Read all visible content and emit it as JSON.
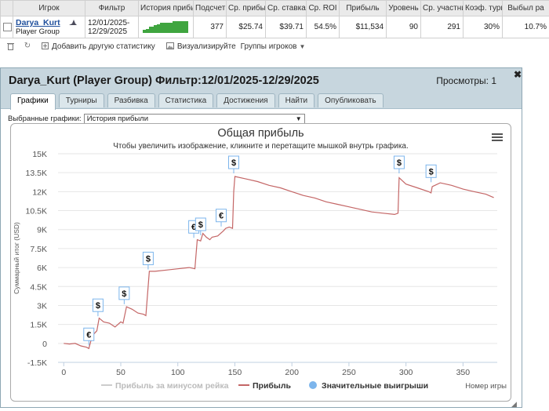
{
  "table": {
    "headers": [
      "Игрок",
      "Фильтр",
      "История прибыли",
      "Подсчет",
      "Ср. прибыль",
      "Ср. ставка",
      "Ср. ROI",
      "Прибыль",
      "Уровень",
      "Ср. участники",
      "Коэф. турниров",
      "Выбыл ра"
    ],
    "row": {
      "player_name": "Darya_Kurt",
      "player_group": "Player Group",
      "filter_line1": "12/01/2025-",
      "filter_line2": "12/29/2025",
      "count": "377",
      "avg_profit": "$25.74",
      "avg_stake": "$39.71",
      "avg_roi": "54.5%",
      "profit": "$11,534",
      "level": "90",
      "avg_participants": "291",
      "tourney_coef": "30%",
      "eliminated": "10.7%"
    }
  },
  "toolbar": {
    "add_stats": "Добавить другую статистику",
    "visualize": "Визуализируйте",
    "player_groups": "Группы игроков"
  },
  "panel": {
    "title": "Darya_Kurt (Player Group) Фильтр:12/01/2025-12/29/2025",
    "views": "Просмотры: 1",
    "tabs": [
      "Графики",
      "Турниры",
      "Разбивка",
      "Статистика",
      "Достижения",
      "Найти",
      "Опубликовать"
    ],
    "active_tab": 0,
    "selector_label": "Выбранные графики:",
    "selector_value": "История прибыли"
  },
  "chart_data": {
    "type": "line",
    "title": "Общая прибыль",
    "subtitle": "Чтобы увеличить изображение, кликните и перетащите мышкой внутрь графика.",
    "xlabel": "Номер игры",
    "ylabel": "Суммарный итог (USD)",
    "xlim": [
      -5,
      380
    ],
    "ylim": [
      -1500,
      15000
    ],
    "x_ticks": [
      0,
      50,
      100,
      150,
      200,
      250,
      300,
      350
    ],
    "y_tick_labels": [
      "-1.5K",
      "0",
      "1.5K",
      "3K",
      "4.5K",
      "6K",
      "7.5K",
      "9K",
      "10.5K",
      "12K",
      "13.5K",
      "15K"
    ],
    "y_tick_values": [
      -1500,
      0,
      1500,
      3000,
      4500,
      6000,
      7500,
      9000,
      10500,
      12000,
      13500,
      15000
    ],
    "grid": "horizontal",
    "legend_position": "bottom",
    "series": [
      {
        "name": "Прибыль за минусом рейка",
        "color": "#cccccc",
        "x": [],
        "y": []
      },
      {
        "name": "Прибыль",
        "color": "#c46666",
        "x": [
          0,
          5,
          10,
          15,
          20,
          22,
          25,
          29,
          31,
          35,
          40,
          45,
          50,
          52,
          55,
          60,
          65,
          70,
          72,
          75,
          80,
          90,
          100,
          110,
          115,
          117,
          120,
          122,
          125,
          128,
          130,
          135,
          140,
          142,
          145,
          148,
          149,
          150,
          160,
          170,
          180,
          190,
          200,
          210,
          220,
          230,
          240,
          250,
          260,
          270,
          280,
          290,
          293,
          294,
          300,
          310,
          320,
          322,
          323,
          330,
          340,
          350,
          360,
          370,
          377
        ],
        "y": [
          0,
          -50,
          0,
          -200,
          -300,
          -400,
          600,
          1000,
          2000,
          1700,
          1600,
          1300,
          1700,
          1600,
          2900,
          2700,
          2400,
          2300,
          2200,
          5700,
          5700,
          5800,
          5900,
          6000,
          5900,
          8200,
          8100,
          8700,
          8400,
          8200,
          8400,
          8500,
          8900,
          9100,
          9200,
          9100,
          12000,
          13200,
          13000,
          12800,
          12500,
          12300,
          12000,
          11700,
          11500,
          11200,
          11000,
          10800,
          10600,
          10400,
          10300,
          10200,
          10300,
          13100,
          12600,
          12300,
          12000,
          11900,
          12400,
          12700,
          12500,
          12200,
          12000,
          11800,
          11534
        ]
      }
    ],
    "significant_wins": {
      "name": "Значительные выигрыши",
      "color": "#7cb5ec",
      "points": [
        {
          "x": 22,
          "y": -400,
          "symbol": "€"
        },
        {
          "x": 30,
          "y": 1900,
          "symbol": "$"
        },
        {
          "x": 53,
          "y": 2850,
          "symbol": "$"
        },
        {
          "x": 74,
          "y": 5600,
          "symbol": "$"
        },
        {
          "x": 114,
          "y": 8100,
          "symbol": "€"
        },
        {
          "x": 120,
          "y": 8300,
          "symbol": "$"
        },
        {
          "x": 138,
          "y": 9000,
          "symbol": "€"
        },
        {
          "x": 149,
          "y": 13200,
          "symbol": "$"
        },
        {
          "x": 294,
          "y": 13200,
          "symbol": "$"
        },
        {
          "x": 322,
          "y": 12500,
          "symbol": "$"
        }
      ]
    }
  }
}
